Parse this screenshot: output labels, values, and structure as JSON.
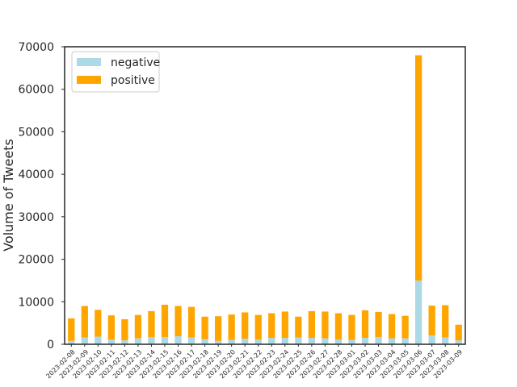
{
  "chart_data": {
    "type": "bar",
    "stacked": true,
    "categories": [
      "2023-02-08",
      "2023-02-09",
      "2023-02-10",
      "2023-02-11",
      "2023-02-12",
      "2023-02-13",
      "2023-02-14",
      "2023-02-15",
      "2023-02-16",
      "2023-02-17",
      "2023-02-18",
      "2023-02-19",
      "2023-02-20",
      "2023-02-21",
      "2023-02-22",
      "2023-02-23",
      "2023-02-24",
      "2023-02-25",
      "2023-02-26",
      "2023-02-27",
      "2023-02-28",
      "2023-03-01",
      "2023-03-02",
      "2023-03-03",
      "2023-03-04",
      "2023-03-05",
      "2023-03-06",
      "2023-03-07",
      "2023-03-08",
      "2023-03-09"
    ],
    "series": [
      {
        "name": "negative",
        "color": "#add8e6",
        "values": [
          800,
          1600,
          1800,
          1100,
          900,
          1400,
          1700,
          1700,
          1900,
          1600,
          1200,
          800,
          1000,
          1300,
          1100,
          1500,
          1500,
          1600,
          1500,
          1400,
          1100,
          1000,
          1500,
          1700,
          1400,
          1400,
          15000,
          2100,
          1600,
          900
        ]
      },
      {
        "name": "positive",
        "color": "#ffa500",
        "values": [
          5300,
          7400,
          6300,
          5700,
          5000,
          5500,
          6100,
          7600,
          7100,
          7200,
          5300,
          5800,
          6000,
          6200,
          5800,
          5800,
          6200,
          4900,
          6300,
          6300,
          6200,
          5900,
          6500,
          5900,
          5700,
          5300,
          53000,
          7000,
          7600,
          3700
        ]
      }
    ],
    "xlabel": "",
    "ylabel": "Volume of Tweets",
    "ylim": [
      0,
      70000
    ],
    "yticks": [
      "0",
      "10000",
      "20000",
      "30000",
      "40000",
      "50000",
      "60000",
      "70000"
    ],
    "grid": false,
    "legend_position": "top-left"
  }
}
